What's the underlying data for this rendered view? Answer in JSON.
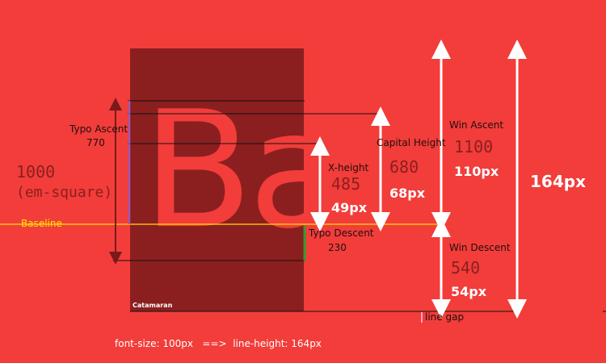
{
  "font_name": "Catamaran",
  "glyph_sample": "Ba",
  "em_square": {
    "value": "1000",
    "label": "(em-square)"
  },
  "baseline_label": "Baseline",
  "typo_ascent": {
    "label": "Typo Ascent",
    "value": "770"
  },
  "typo_descent": {
    "label": "Typo Descent",
    "value": "230"
  },
  "x_height": {
    "label": "X-height",
    "value": "485",
    "px": "49px"
  },
  "capital_height": {
    "label": "Capital Height",
    "value": "680",
    "px": "68px"
  },
  "win_ascent": {
    "label": "Win Ascent",
    "value": "1100",
    "px": "110px"
  },
  "win_descent": {
    "label": "Win Descent",
    "value": "540",
    "px": "54px"
  },
  "line_height_px": "164px",
  "line_gap_label": "line gap",
  "footer": "font-size: 100px   ==>  line-height: 164px",
  "colors": {
    "background": "#f23d3a",
    "em_box": "#8b1f1f",
    "baseline": "#ffe000",
    "typo_ascent_bar": "#9b59b6",
    "typo_descent_bar": "#2e9e2e",
    "line_gap_mark": "#ff9ecf"
  }
}
